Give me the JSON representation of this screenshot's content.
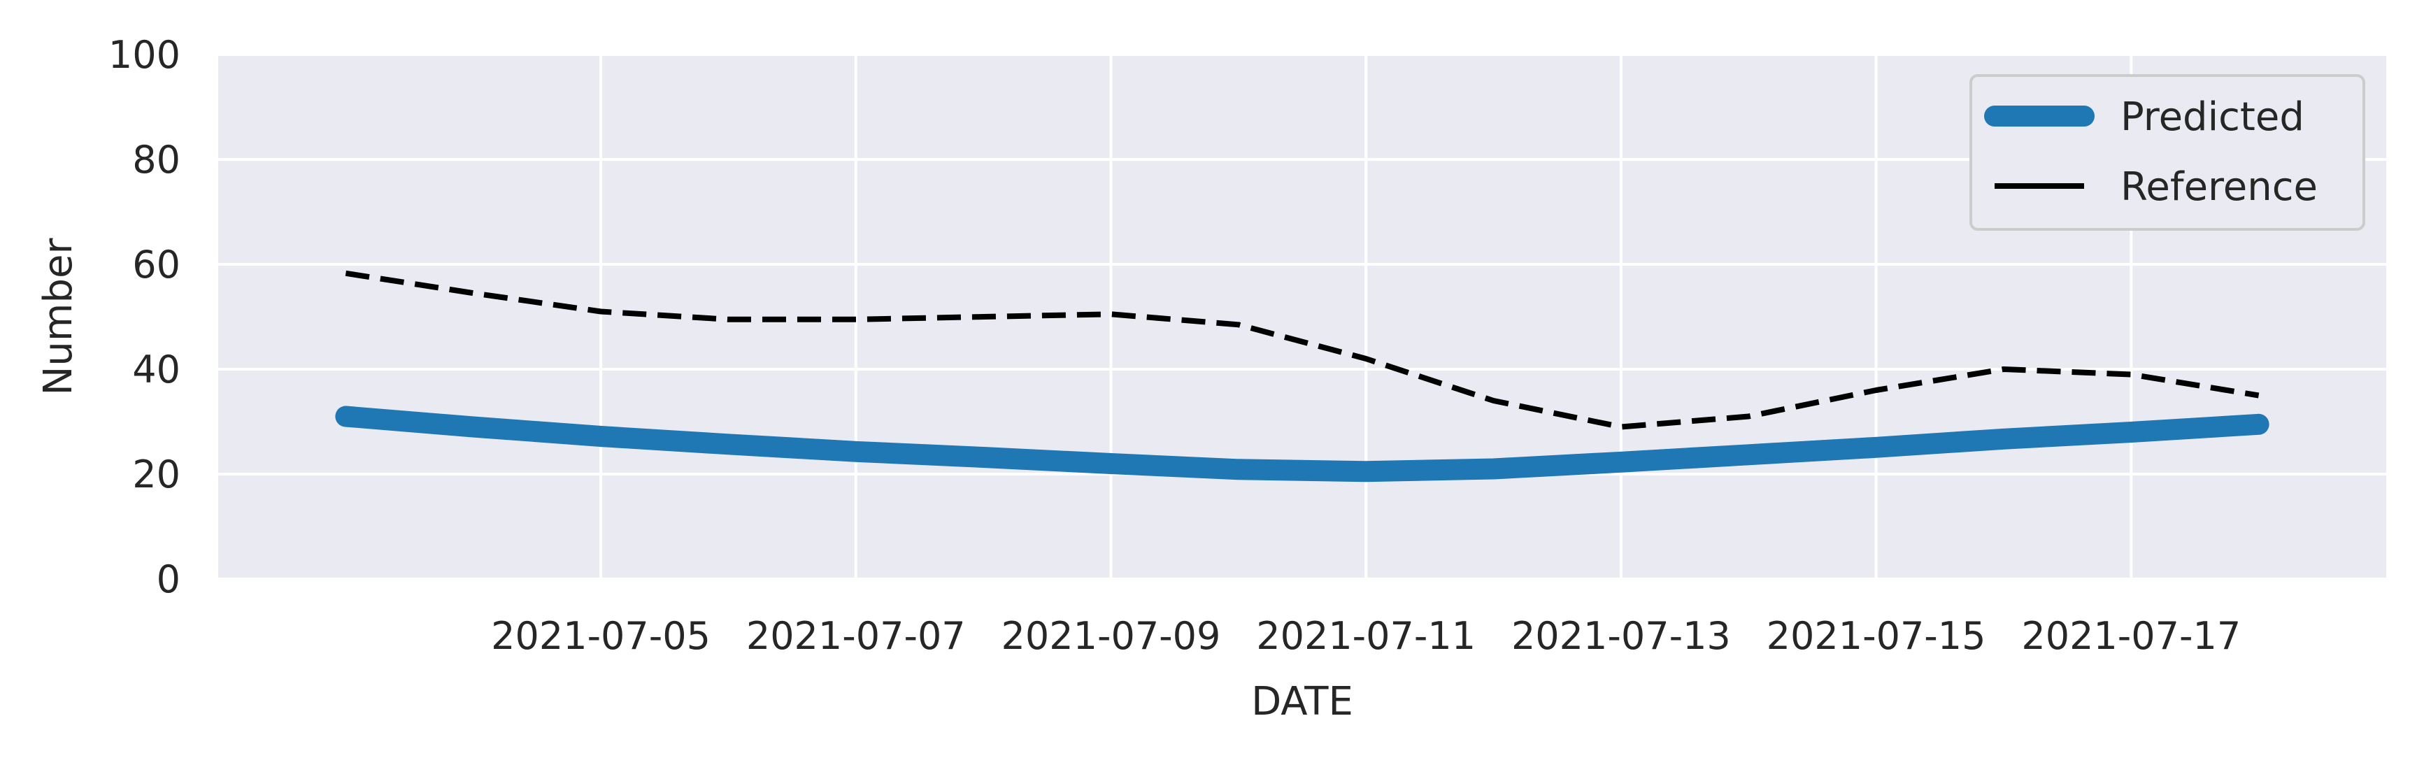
{
  "chart_data": {
    "type": "line",
    "title": "",
    "xlabel": "DATE",
    "ylabel": "Number",
    "ylim": [
      0,
      100
    ],
    "xlim": [
      "2021-07-02",
      "2021-07-19"
    ],
    "yticks": [
      "0",
      "20",
      "40",
      "60",
      "80",
      "100"
    ],
    "xticks": [
      "2021-07-05",
      "2021-07-07",
      "2021-07-09",
      "2021-07-11",
      "2021-07-13",
      "2021-07-15",
      "2021-07-17"
    ],
    "grid": true,
    "legend_position": "top-right",
    "x": [
      "2021-07-03",
      "2021-07-04",
      "2021-07-05",
      "2021-07-06",
      "2021-07-07",
      "2021-07-08",
      "2021-07-09",
      "2021-07-10",
      "2021-07-11",
      "2021-07-12",
      "2021-07-13",
      "2021-07-14",
      "2021-07-15",
      "2021-07-16",
      "2021-07-17",
      "2021-07-18"
    ],
    "series": [
      {
        "name": "Predicted",
        "style": "solid-thick",
        "color": "#1f77b4",
        "values": [
          31.0,
          29.0,
          27.2,
          25.7,
          24.3,
          23.2,
          22.0,
          20.9,
          20.5,
          21.0,
          22.3,
          23.7,
          25.1,
          26.7,
          28.0,
          29.5
        ]
      },
      {
        "name": "Reference",
        "style": "dashed",
        "color": "#000000",
        "values": [
          58.3,
          54.5,
          51.0,
          49.5,
          49.5,
          50.0,
          50.5,
          48.5,
          42.0,
          34.0,
          29.0,
          31.0,
          36.0,
          40.0,
          39.0,
          35.0
        ]
      }
    ]
  }
}
